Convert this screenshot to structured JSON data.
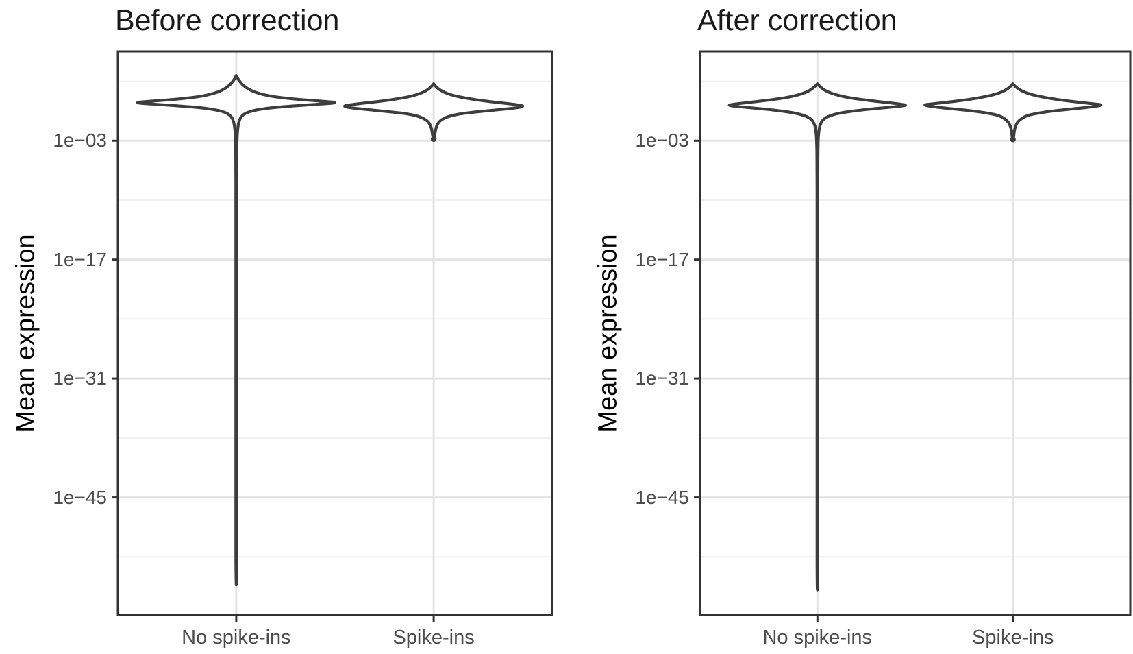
{
  "colors": {
    "background": "#ffffff",
    "violin_stroke": "#3d3d3d",
    "panel_border": "#333333",
    "grid_major": "#e3e3e3",
    "grid_minor": "#f0f0f0",
    "tick_mark": "#333333",
    "tick_label": "#4d4d4d",
    "panel_title": "#1a1a1a",
    "axis_title": "#000000"
  },
  "chart_data": {
    "type": "violin",
    "ylabel": "Mean expression",
    "yscale": "log10",
    "ylim_log10": [
      -58.84,
      7.52
    ],
    "grid": true,
    "y_major_ticks": [
      {
        "label": "1e−03",
        "log10": -3
      },
      {
        "label": "1e−17",
        "log10": -17
      },
      {
        "label": "1e−31",
        "log10": -31
      },
      {
        "label": "1e−45",
        "log10": -45
      }
    ],
    "y_minor_gridlines_log10": [
      4,
      -10,
      -24,
      -38,
      -52
    ],
    "panels": [
      {
        "title": "Before correction",
        "categories": [
          "No spike-ins",
          "Spike-ins"
        ],
        "violins": [
          {
            "category": "No spike-ins",
            "max_halfwidth_units": 0.5,
            "top_log10": 4.69,
            "peak_log10": 1.5,
            "tail_end_log10": -55.3,
            "end_dot_log10": null,
            "profile_log10_width": [
              [
                4.69,
                0
              ],
              [
                4.4,
                0.012
              ],
              [
                4.05,
                0.032
              ],
              [
                3.6,
                0.065
              ],
              [
                3.15,
                0.115
              ],
              [
                2.75,
                0.185
              ],
              [
                2.4,
                0.29
              ],
              [
                2.1,
                0.44
              ],
              [
                1.88,
                0.62
              ],
              [
                1.7,
                0.82
              ],
              [
                1.58,
                0.95
              ],
              [
                1.5,
                1.0
              ],
              [
                1.4,
                0.95
              ],
              [
                1.28,
                0.8
              ],
              [
                1.12,
                0.6
              ],
              [
                0.95,
                0.42
              ],
              [
                0.75,
                0.27
              ],
              [
                0.5,
                0.16
              ],
              [
                0.2,
                0.09
              ],
              [
                -0.2,
                0.05
              ],
              [
                -0.8,
                0.027
              ],
              [
                -1.6,
                0.015
              ],
              [
                -2.8,
                0.008
              ],
              [
                -4.5,
                0.0055
              ],
              [
                -8,
                0.004
              ],
              [
                -14,
                0.004
              ],
              [
                -22,
                0.004
              ],
              [
                -30,
                0.004
              ],
              [
                -38,
                0.004
              ],
              [
                -46,
                0.004
              ],
              [
                -52,
                0.004
              ],
              [
                -55.3,
                0
              ]
            ]
          },
          {
            "category": "Spike-ins",
            "max_halfwidth_units": 0.45,
            "top_log10": 3.72,
            "peak_log10": 1.1,
            "tail_end_log10": -2.8,
            "end_dot_log10": -2.8,
            "profile_log10_width": [
              [
                3.72,
                0
              ],
              [
                3.5,
                0.016
              ],
              [
                3.22,
                0.042
              ],
              [
                2.9,
                0.085
              ],
              [
                2.58,
                0.15
              ],
              [
                2.26,
                0.25
              ],
              [
                1.96,
                0.4
              ],
              [
                1.68,
                0.58
              ],
              [
                1.44,
                0.78
              ],
              [
                1.25,
                0.93
              ],
              [
                1.1,
                1.0
              ],
              [
                0.95,
                0.97
              ],
              [
                0.78,
                0.85
              ],
              [
                0.58,
                0.66
              ],
              [
                0.38,
                0.47
              ],
              [
                0.18,
                0.31
              ],
              [
                -0.05,
                0.2
              ],
              [
                -0.35,
                0.12
              ],
              [
                -0.75,
                0.065
              ],
              [
                -1.25,
                0.035
              ],
              [
                -1.8,
                0.02
              ],
              [
                -2.35,
                0.012
              ],
              [
                -2.8,
                0
              ]
            ]
          }
        ]
      },
      {
        "title": "After correction",
        "categories": [
          "No spike-ins",
          "Spike-ins"
        ],
        "violins": [
          {
            "category": "No spike-ins",
            "max_halfwidth_units": 0.45,
            "top_log10": 3.72,
            "peak_log10": 1.18,
            "tail_end_log10": -55.9,
            "end_dot_log10": null,
            "profile_log10_width": [
              [
                3.72,
                0
              ],
              [
                3.5,
                0.018
              ],
              [
                3.2,
                0.05
              ],
              [
                2.86,
                0.1
              ],
              [
                2.52,
                0.18
              ],
              [
                2.2,
                0.3
              ],
              [
                1.9,
                0.47
              ],
              [
                1.64,
                0.67
              ],
              [
                1.42,
                0.86
              ],
              [
                1.28,
                0.96
              ],
              [
                1.18,
                1.0
              ],
              [
                1.05,
                0.93
              ],
              [
                0.88,
                0.76
              ],
              [
                0.68,
                0.56
              ],
              [
                0.46,
                0.38
              ],
              [
                0.22,
                0.24
              ],
              [
                -0.08,
                0.14
              ],
              [
                -0.5,
                0.07
              ],
              [
                -1.05,
                0.035
              ],
              [
                -1.8,
                0.018
              ],
              [
                -3,
                0.009
              ],
              [
                -5,
                0.0055
              ],
              [
                -9,
                0.004
              ],
              [
                -15,
                0.004
              ],
              [
                -23,
                0.004
              ],
              [
                -31,
                0.004
              ],
              [
                -39,
                0.004
              ],
              [
                -47,
                0.004
              ],
              [
                -53,
                0.004
              ],
              [
                -55.9,
                0
              ]
            ]
          },
          {
            "category": "Spike-ins",
            "max_halfwidth_units": 0.45,
            "top_log10": 3.72,
            "peak_log10": 1.22,
            "tail_end_log10": -2.84,
            "end_dot_log10": -2.84,
            "profile_log10_width": [
              [
                3.72,
                0
              ],
              [
                3.52,
                0.016
              ],
              [
                3.25,
                0.045
              ],
              [
                2.94,
                0.09
              ],
              [
                2.62,
                0.16
              ],
              [
                2.3,
                0.27
              ],
              [
                2.0,
                0.42
              ],
              [
                1.72,
                0.6
              ],
              [
                1.48,
                0.8
              ],
              [
                1.32,
                0.94
              ],
              [
                1.22,
                1.0
              ],
              [
                1.08,
                0.95
              ],
              [
                0.9,
                0.82
              ],
              [
                0.7,
                0.63
              ],
              [
                0.48,
                0.44
              ],
              [
                0.25,
                0.29
              ],
              [
                -0.02,
                0.17
              ],
              [
                -0.38,
                0.1
              ],
              [
                -0.8,
                0.055
              ],
              [
                -1.3,
                0.03
              ],
              [
                -1.85,
                0.016
              ],
              [
                -2.4,
                0.01
              ],
              [
                -2.84,
                0
              ]
            ]
          }
        ]
      }
    ]
  }
}
